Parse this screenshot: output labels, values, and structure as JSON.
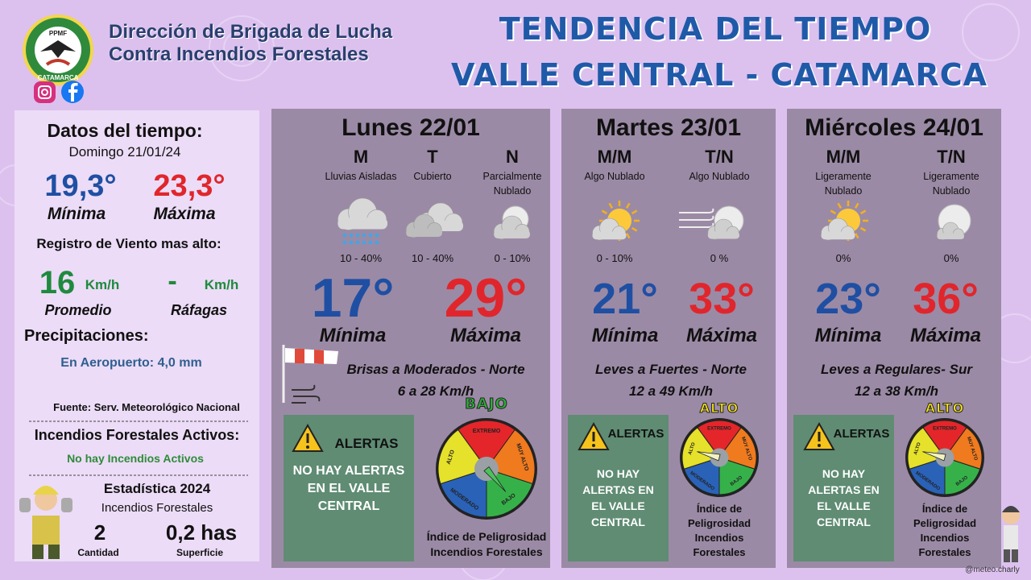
{
  "header": {
    "org_line1": "Dirección de Brigada de Lucha",
    "org_line2": "Contra Incendios Forestales",
    "logo_top": "PPMF",
    "logo_bottom": "CATAMARCA",
    "title_line1": "TENDENCIA DEL TIEMPO",
    "title_line2": "VALLE CENTRAL - CATAMARCA"
  },
  "summary": {
    "title": "Datos del tiempo:",
    "date": "Domingo 21/01/24",
    "min_value": "19,3°",
    "min_label": "Mínima",
    "max_value": "23,3°",
    "max_label": "Máxima",
    "wind_title": "Registro de Viento mas alto:",
    "wind_avg": "16",
    "wind_avg_unit": "Km/h",
    "wind_gust": "-",
    "wind_gust_unit": "Km/h",
    "avg_label": "Promedio",
    "gust_label": "Ráfagas",
    "precip_title": "Precipitaciones:",
    "precip_text": "En Aeropuerto: 4,0 mm",
    "source": "Fuente: Serv. Meteorológico Nacional",
    "fires_title": "Incendios Forestales Activos:",
    "fires_text": "No hay Incendios Activos",
    "stats_title": "Estadística 2024",
    "stats_subtitle": "Incendios Forestales",
    "count": "2",
    "count_label": "Cantidad",
    "area": "0,2 has",
    "area_label": "Superficie"
  },
  "days": [
    {
      "title": "Lunes 22/01",
      "periods": [
        {
          "code": "M",
          "desc": "Lluvias Aisladas",
          "prob": "10 - 40%"
        },
        {
          "code": "T",
          "desc": "Cubierto",
          "prob": "10 - 40%"
        },
        {
          "code": "N",
          "desc": "Parcialmente Nublado",
          "prob": "0 - 10%"
        }
      ],
      "min": "17°",
      "min_label": "Mínima",
      "max": "29°",
      "max_label": "Máxima",
      "wind": "Brisas a Moderados - Norte",
      "wind_speed": "6 a 28 Km/h",
      "alert_title": "ALERTAS",
      "alert_text": "NO HAY ALERTAS EN EL VALLE CENTRAL",
      "danger": "BAJO"
    },
    {
      "title": "Martes 23/01",
      "periods": [
        {
          "code": "M/M",
          "desc": "Algo Nublado",
          "prob": "0 - 10%"
        },
        {
          "code": "T/N",
          "desc": "Algo Nublado",
          "prob": "0 %"
        }
      ],
      "min": "21°",
      "min_label": "Mínima",
      "max": "33°",
      "max_label": "Máxima",
      "wind": "Leves a Fuertes - Norte",
      "wind_speed": "12 a 49 Km/h",
      "alert_title": "ALERTAS",
      "alert_text": "NO HAY ALERTAS EN EL VALLE CENTRAL",
      "danger": "ALTO"
    },
    {
      "title": "Miércoles 24/01",
      "periods": [
        {
          "code": "M/M",
          "desc": "Ligeramente Nublado",
          "prob": "0%"
        },
        {
          "code": "T/N",
          "desc": "Ligeramente Nublado",
          "prob": "0%"
        }
      ],
      "min": "23°",
      "min_label": "Mínima",
      "max": "36°",
      "max_label": "Máxima",
      "wind": "Leves a Regulares- Sur",
      "wind_speed": "12 a 38 Km/h",
      "alert_title": "ALERTAS",
      "alert_text": "NO HAY ALERTAS EN EL VALLE CENTRAL",
      "danger": "ALTO"
    }
  ],
  "gauge_labels": [
    "EXTREMO",
    "MUY ALTO",
    "BAJO",
    "MODERADO",
    "ALTO"
  ],
  "index_label": "Índice de Peligrosidad Incendios Forestales",
  "credit": "@meteo.charly"
}
